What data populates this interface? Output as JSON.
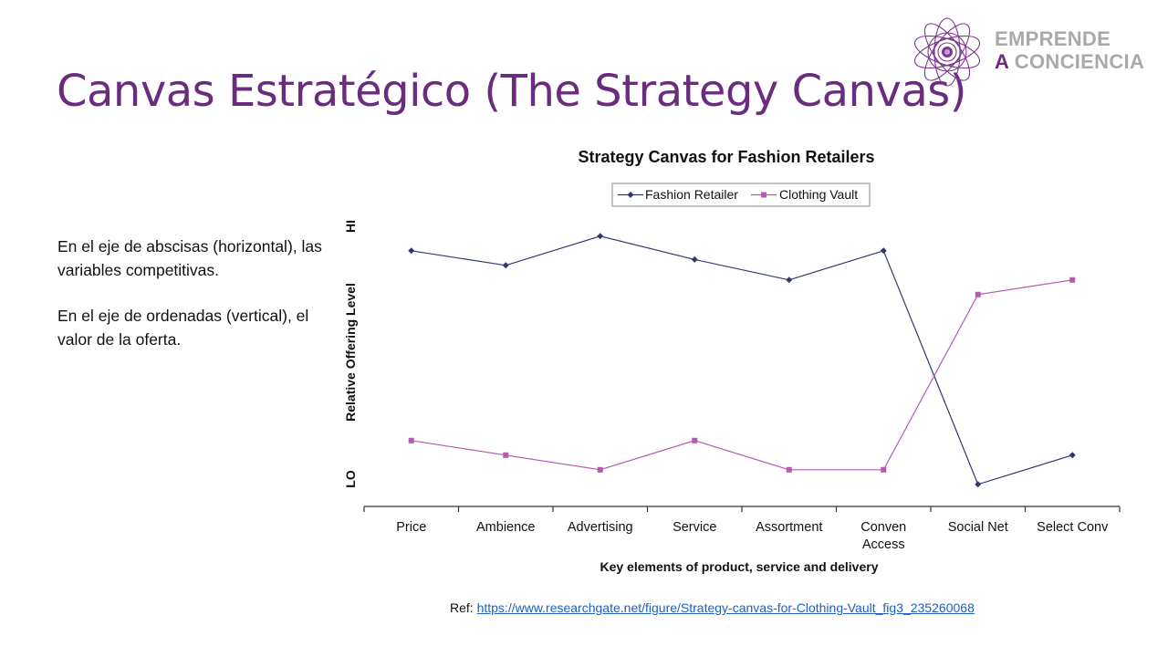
{
  "slide": {
    "title": "Canvas Estratégico (The Strategy Canvas)",
    "paragraph1": "En el eje de abscisas (horizontal), las variables competitivas.",
    "paragraph2": "En el eje de ordenadas (vertical), el valor de la oferta.",
    "ref_label": "Ref:",
    "ref_link": "https://www.researchgate.net/figure/Strategy-canvas-for-Clothing-Vault_fig3_235260068"
  },
  "logo": {
    "line1": "EMPRENDE",
    "line2_a": "A",
    "line2_b": "CONCIENCIA",
    "icon": "flower-mandala-icon"
  },
  "colors": {
    "title": "#6b2c7e",
    "fashion_retailer": "#2e3a6e",
    "clothing_vault": "#b45bb0",
    "link": "#1f5fc2"
  },
  "chart_data": {
    "type": "line",
    "title": "Strategy Canvas for Fashion Retailers",
    "xlabel": "Key elements of product, service and delivery",
    "ylabel": "Relative Offering Level",
    "y_tick_hi": "HI",
    "y_tick_lo": "LO",
    "categories": [
      "Price",
      "Ambience",
      "Advertising",
      "Service",
      "Assortment",
      "Conven Access",
      "Social Net",
      "Select Conv"
    ],
    "series": [
      {
        "name": "Fashion Retailer",
        "marker": "diamond",
        "values": [
          8.6,
          8.1,
          9.1,
          8.3,
          7.6,
          8.6,
          0.6,
          1.6
        ]
      },
      {
        "name": "Clothing Vault",
        "marker": "square",
        "values": [
          2.1,
          1.6,
          1.1,
          2.1,
          1.1,
          1.1,
          7.1,
          7.6
        ]
      }
    ],
    "ylim": [
      0,
      10
    ],
    "grid": false,
    "legend_position": "top"
  }
}
